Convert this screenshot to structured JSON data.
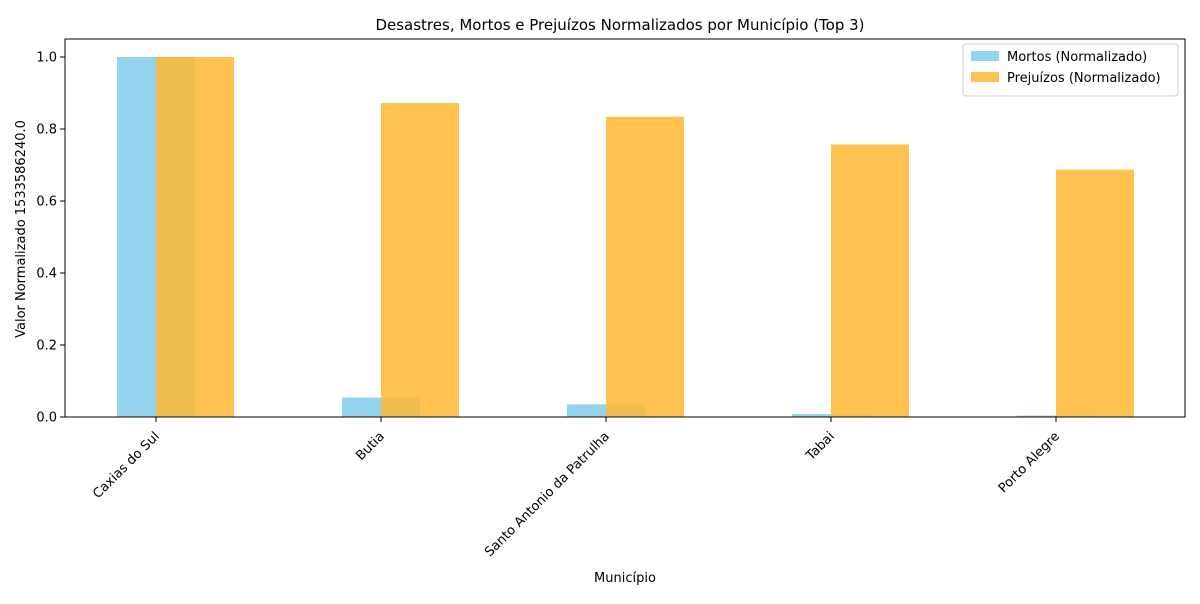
{
  "chart_data": {
    "type": "bar",
    "title": "Desastres, Mortos e Prejuízos Normalizados por Município (Top 3)",
    "xlabel": "Município",
    "ylabel": "Valor Normalizado 1533586240.0",
    "categories": [
      "Caxias do Sul",
      "Butia",
      "Santo Antonio da Patrulha",
      "Tabai",
      "Porto Alegre"
    ],
    "series": [
      {
        "name": "Mortos (Normalizado)",
        "color": "#87ceeb",
        "values": [
          1.0,
          0.054,
          0.035,
          0.008,
          0.004
        ]
      },
      {
        "name": "Prejuízos (Normalizado)",
        "color": "#ffb732",
        "values": [
          1.0,
          0.872,
          0.834,
          0.757,
          0.687
        ]
      }
    ],
    "ylim": [
      0,
      1.05
    ],
    "yticks": [
      "0.0",
      "0.2",
      "0.4",
      "0.6",
      "0.8",
      "1.0"
    ],
    "legend_position": "top-right",
    "grid": false
  }
}
